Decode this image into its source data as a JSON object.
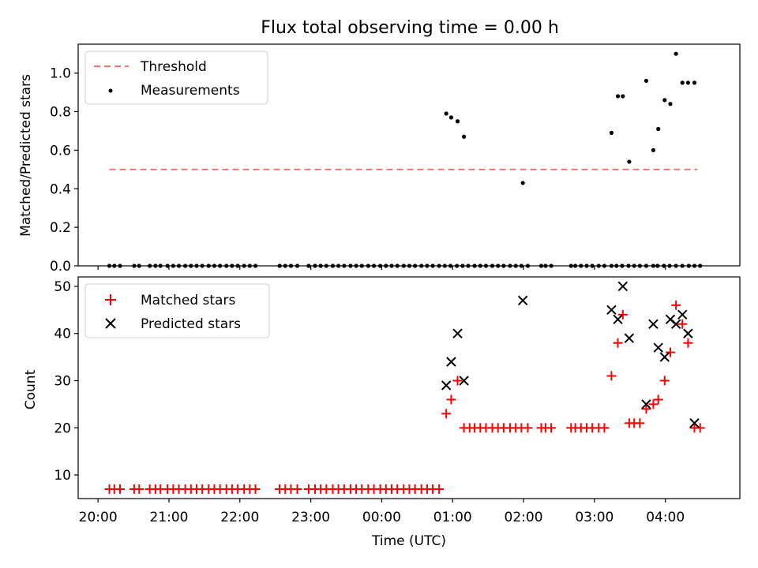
{
  "figure": {
    "title": "Flux total observing time = 0.00 h",
    "xlabel": "Time (UTC)",
    "x_tick_labels": [
      "20:00",
      "21:00",
      "22:00",
      "23:00",
      "00:00",
      "01:00",
      "02:00",
      "03:00",
      "04:00"
    ],
    "x_tick_hours": [
      0,
      1,
      2,
      3,
      4,
      5,
      6,
      7,
      8
    ]
  },
  "chart_data": [
    {
      "type": "scatter",
      "panel": "top",
      "ylabel": "Matched/Predicted stars",
      "xlim_hours_after_20": [
        -0.28,
        9.05
      ],
      "ylim": [
        0.0,
        1.15
      ],
      "y_ticks": [
        0.0,
        0.2,
        0.4,
        0.6,
        0.8,
        1.0
      ],
      "y_tick_labels": [
        "0.0",
        "0.2",
        "0.4",
        "0.6",
        "0.8",
        "1.0"
      ],
      "legend_position": "top-left",
      "threshold": {
        "name": "Threshold",
        "value": 0.5,
        "x_range_hours": [
          0.16,
          8.45
        ],
        "color": "#ff7070"
      },
      "measurements": {
        "name": "Measurements",
        "color": "#000000",
        "x": [
          0.16,
          0.23,
          0.31,
          0.51,
          0.58,
          0.73,
          0.81,
          0.88,
          0.98,
          1.06,
          1.14,
          1.23,
          1.31,
          1.39,
          1.47,
          1.56,
          1.64,
          1.72,
          1.81,
          1.89,
          1.97,
          2.06,
          2.14,
          2.22,
          2.56,
          2.64,
          2.72,
          2.81,
          2.97,
          3.06,
          3.14,
          3.22,
          3.31,
          3.39,
          3.47,
          3.56,
          3.64,
          3.72,
          3.81,
          3.89,
          3.98,
          4.06,
          4.14,
          4.22,
          4.31,
          4.39,
          4.47,
          4.56,
          4.64,
          4.72,
          4.81,
          4.89,
          4.97,
          5.06,
          5.14,
          5.22,
          5.31,
          5.39,
          5.47,
          5.56,
          5.64,
          5.72,
          5.81,
          5.89,
          5.97,
          6.06,
          6.25,
          6.31,
          6.39,
          6.67,
          6.73,
          6.81,
          6.89,
          6.97,
          7.06,
          7.14,
          7.24,
          7.31,
          7.39,
          7.48,
          7.56,
          7.64,
          7.73,
          7.83,
          7.89,
          7.98,
          8.06,
          8.15,
          8.24,
          8.33,
          8.41,
          8.49
        ],
        "y": [
          0,
          0,
          0,
          0,
          0,
          0,
          0,
          0,
          0,
          0,
          0,
          0,
          0,
          0,
          0,
          0,
          0,
          0,
          0,
          0,
          0,
          0,
          0,
          0,
          0,
          0,
          0,
          0,
          0,
          0,
          0,
          0,
          0,
          0,
          0,
          0,
          0,
          0,
          0,
          0,
          0,
          0,
          0,
          0,
          0,
          0,
          0,
          0,
          0,
          0,
          0,
          0,
          0,
          0,
          0,
          0,
          0,
          0,
          0,
          0,
          0,
          0,
          0,
          0,
          0,
          0,
          0,
          0,
          0,
          0,
          0,
          0,
          0,
          0,
          0,
          0,
          0,
          0,
          0,
          0,
          0,
          0,
          0,
          0,
          0,
          0,
          0,
          0,
          0,
          0,
          0,
          0
        ]
      },
      "measurements_nonzero": {
        "x": [
          4.91,
          4.98,
          5.07,
          5.16,
          5.99,
          7.24,
          7.33,
          7.4,
          7.49,
          7.73,
          7.83,
          7.9,
          7.99,
          8.07,
          8.15,
          8.24,
          8.32,
          8.41
        ],
        "y": [
          0.79,
          0.77,
          0.75,
          0.67,
          0.43,
          0.69,
          0.88,
          0.88,
          0.54,
          0.96,
          0.6,
          0.71,
          0.86,
          0.84,
          1.1,
          0.95,
          0.95,
          0.95
        ]
      }
    },
    {
      "type": "scatter",
      "panel": "bottom",
      "ylabel": "Count",
      "xlim_hours_after_20": [
        -0.28,
        9.05
      ],
      "ylim": [
        5,
        52
      ],
      "y_ticks": [
        10,
        20,
        30,
        40,
        50
      ],
      "y_tick_labels": [
        "10",
        "20",
        "30",
        "40",
        "50"
      ],
      "legend_position": "top-left",
      "series": [
        {
          "name": "Matched stars",
          "marker": "+",
          "color": "#ff0000",
          "x": [
            0.16,
            0.23,
            0.31,
            0.51,
            0.58,
            0.73,
            0.81,
            0.88,
            0.98,
            1.06,
            1.14,
            1.23,
            1.31,
            1.39,
            1.47,
            1.56,
            1.64,
            1.72,
            1.81,
            1.89,
            1.97,
            2.06,
            2.14,
            2.22,
            2.56,
            2.64,
            2.72,
            2.81,
            2.97,
            3.06,
            3.14,
            3.22,
            3.31,
            3.39,
            3.47,
            3.56,
            3.64,
            3.72,
            3.81,
            3.89,
            3.98,
            4.06,
            4.14,
            4.22,
            4.31,
            4.39,
            4.47,
            4.56,
            4.64,
            4.72,
            4.81,
            4.91,
            4.98,
            5.07,
            5.16,
            5.24,
            5.31,
            5.39,
            5.47,
            5.56,
            5.64,
            5.72,
            5.81,
            5.89,
            5.97,
            6.06,
            6.25,
            6.31,
            6.39,
            6.67,
            6.73,
            6.81,
            6.89,
            6.97,
            7.06,
            7.14,
            7.24,
            7.33,
            7.4,
            7.49,
            7.56,
            7.64,
            7.73,
            7.83,
            7.9,
            7.99,
            8.07,
            8.15,
            8.24,
            8.32,
            8.41,
            8.49
          ],
          "y": [
            7,
            7,
            7,
            7,
            7,
            7,
            7,
            7,
            7,
            7,
            7,
            7,
            7,
            7,
            7,
            7,
            7,
            7,
            7,
            7,
            7,
            7,
            7,
            7,
            7,
            7,
            7,
            7,
            7,
            7,
            7,
            7,
            7,
            7,
            7,
            7,
            7,
            7,
            7,
            7,
            7,
            7,
            7,
            7,
            7,
            7,
            7,
            7,
            7,
            7,
            7,
            23,
            26,
            30,
            20,
            20,
            20,
            20,
            20,
            20,
            20,
            20,
            20,
            20,
            20,
            20,
            20,
            20,
            20,
            20,
            20,
            20,
            20,
            20,
            20,
            20,
            31,
            38,
            44,
            21,
            21,
            21,
            24,
            25,
            26,
            30,
            36,
            46,
            42,
            38,
            20,
            20
          ]
        },
        {
          "name": "Predicted stars",
          "marker": "x",
          "color": "#000000",
          "x": [
            4.91,
            4.98,
            5.07,
            5.16,
            5.99,
            7.24,
            7.33,
            7.4,
            7.49,
            7.73,
            7.83,
            7.9,
            7.99,
            8.07,
            8.15,
            8.24,
            8.32,
            8.41
          ],
          "y": [
            29,
            34,
            40,
            30,
            47,
            45,
            43,
            50,
            39,
            25,
            42,
            37,
            35,
            43,
            42,
            44,
            40,
            21
          ]
        }
      ]
    }
  ]
}
